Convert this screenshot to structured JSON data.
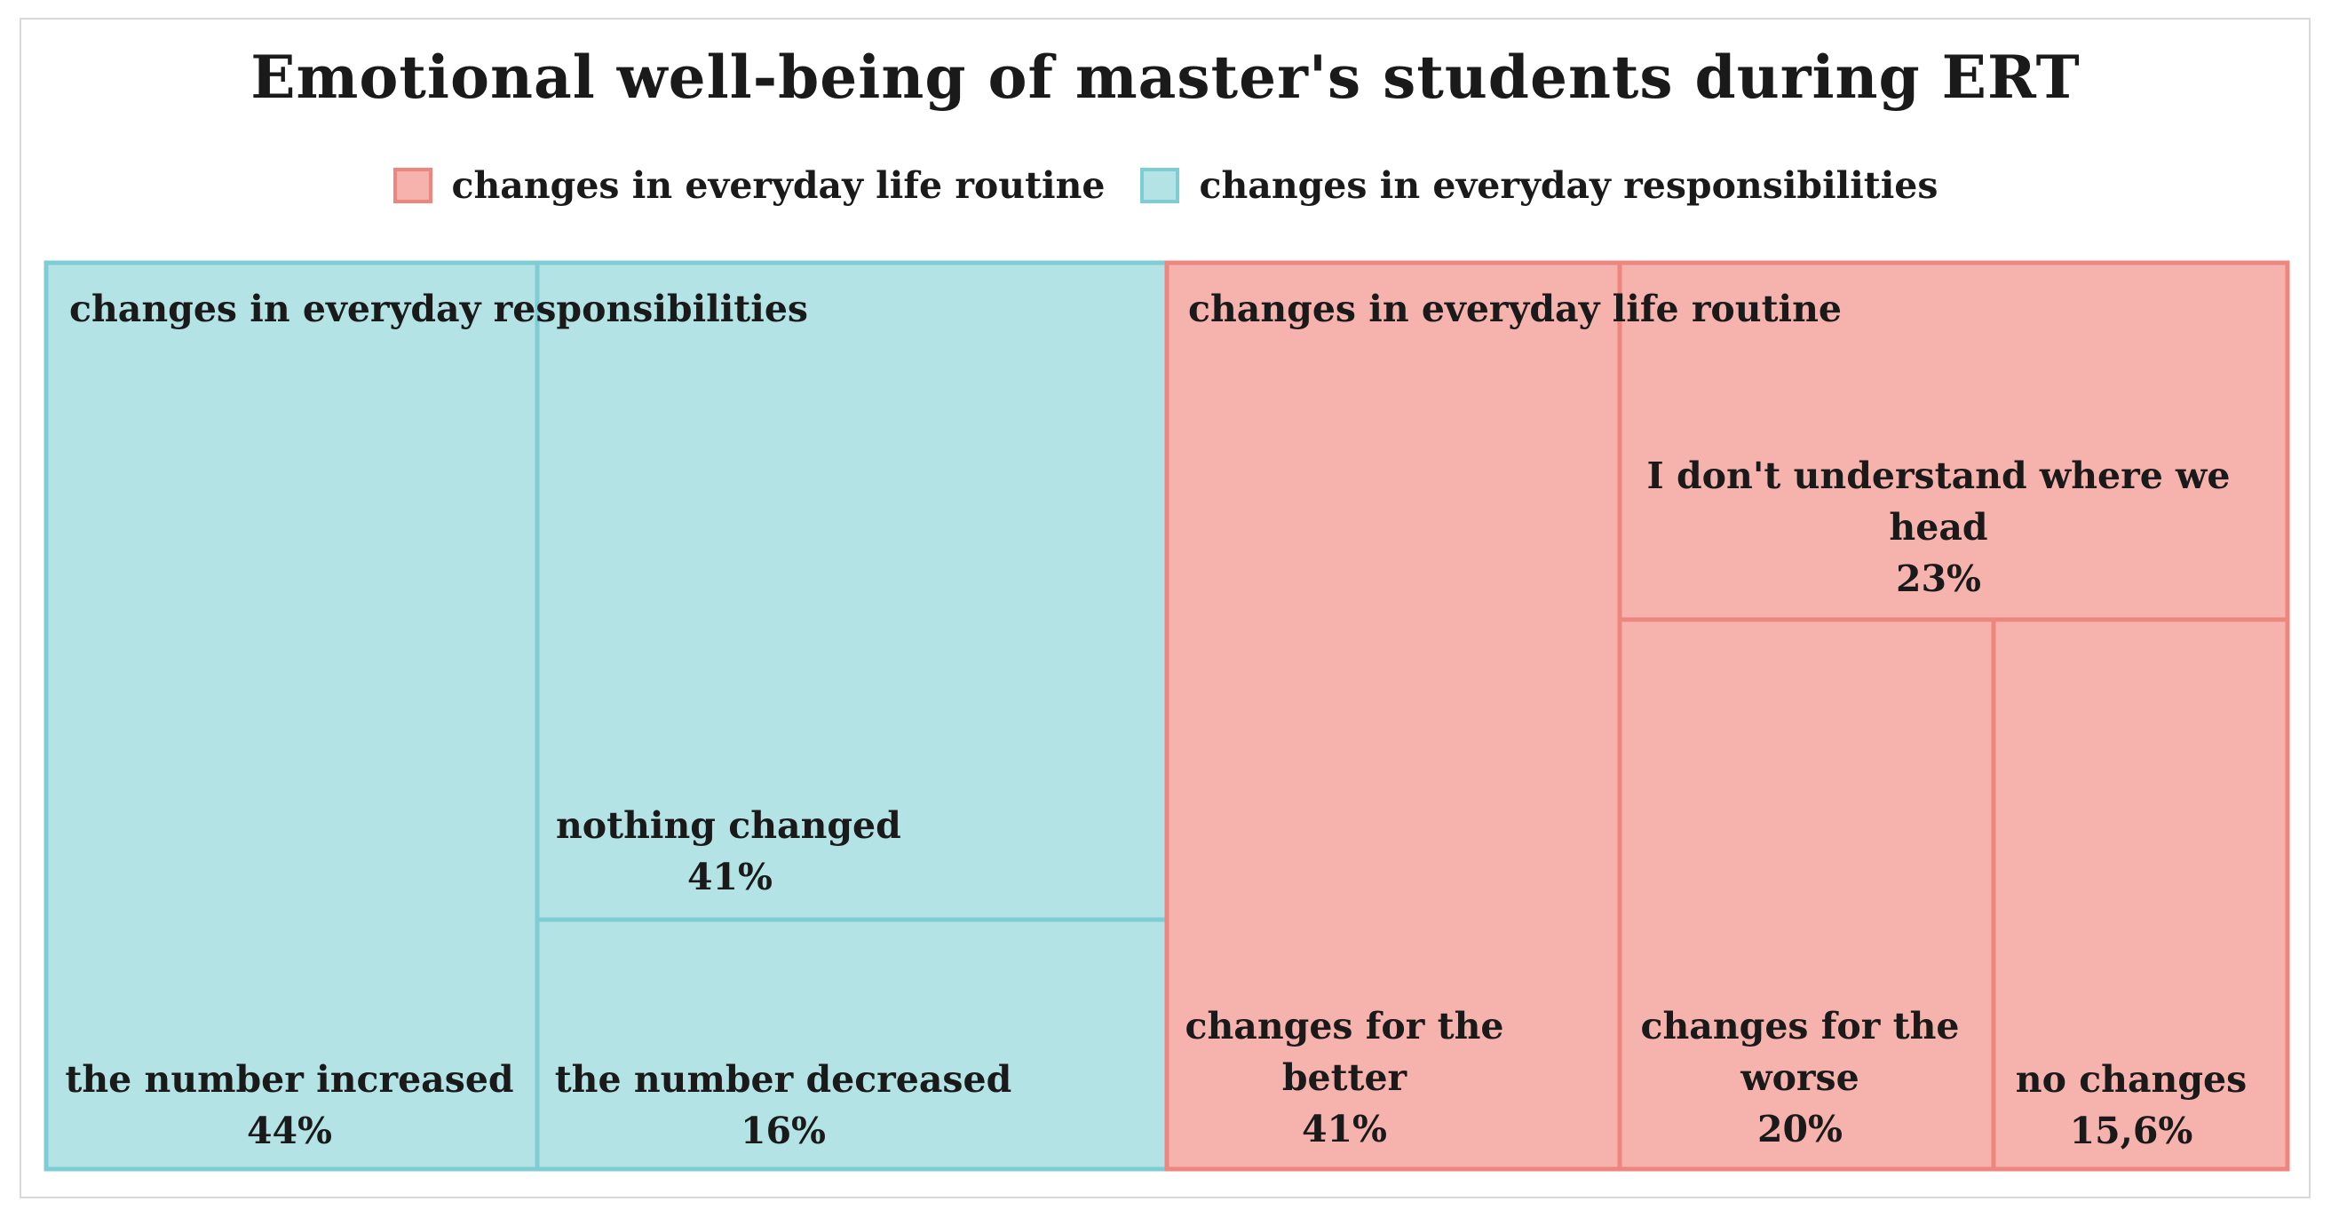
{
  "chart_data": {
    "type": "treemap",
    "title": "Emotional well-being of master's students during ERT",
    "legend": [
      {
        "name": "changes in everyday life routine",
        "color": "#f6b3ae",
        "border": "#ee8680"
      },
      {
        "name": "changes in everyday responsibilities",
        "color": "#b4e3e6",
        "border": "#7fcdd4"
      }
    ],
    "groups": [
      {
        "name": "changes in everyday responsibilities",
        "color": "#b4e3e6",
        "border": "#7fcdd4",
        "items": [
          {
            "label": "the number increased",
            "value": 44,
            "value_label": "44%"
          },
          {
            "label": "nothing changed",
            "value": 41,
            "value_label": "41%"
          },
          {
            "label": "the number decreased",
            "value": 16,
            "value_label": "16%"
          }
        ]
      },
      {
        "name": "changes in everyday life routine",
        "color": "#f6b3ae",
        "border": "#ee8680",
        "items": [
          {
            "label": "changes for the better",
            "value": 41,
            "value_label": "41%"
          },
          {
            "label": "I don't understand where we head",
            "value": 23,
            "value_label": "23%"
          },
          {
            "label": "changes for the worse",
            "value": 20,
            "value_label": "20%"
          },
          {
            "label": "no changes",
            "value": 15.6,
            "value_label": "15,6%"
          }
        ]
      }
    ]
  }
}
